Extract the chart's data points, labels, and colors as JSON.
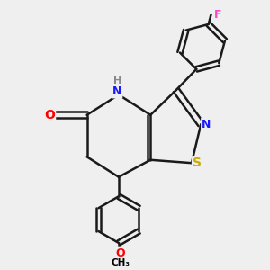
{
  "bg_color": "#efefef",
  "atom_colors": {
    "C": "#000000",
    "N": "#1a1aff",
    "O": "#ff0000",
    "S": "#ccaa00",
    "F": "#ff44cc",
    "H": "#888888"
  },
  "bond_color": "#1a1a1a",
  "bond_lw": 1.8,
  "figsize": [
    3.0,
    3.0
  ],
  "dpi": 100
}
